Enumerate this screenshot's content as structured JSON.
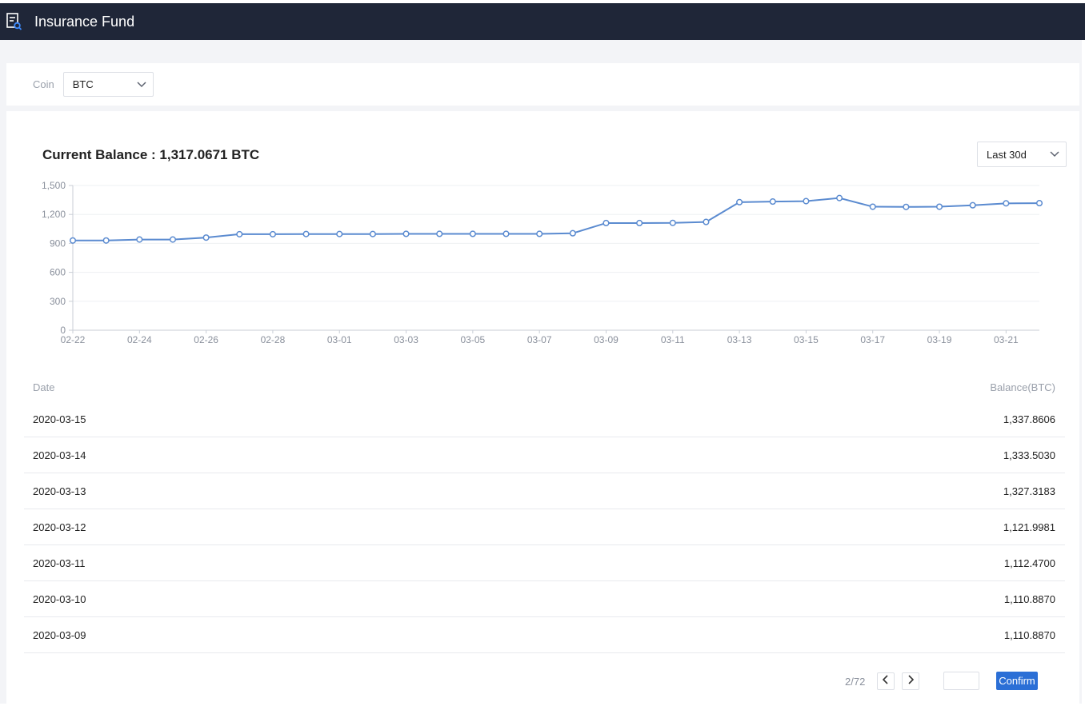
{
  "header": {
    "title": "Insurance Fund",
    "icon": "report-search-icon"
  },
  "filter": {
    "coin_label": "Coin",
    "coin_value": "BTC"
  },
  "summary": {
    "balance_text": "Current Balance : 1,317.0671 BTC",
    "range_value": "Last 30d"
  },
  "chart_data": {
    "type": "line",
    "title": "",
    "xlabel": "",
    "ylabel": "",
    "ylim": [
      0,
      1500
    ],
    "yticks": [
      "0",
      "300",
      "600",
      "900",
      "1,200",
      "1,500"
    ],
    "xticks": [
      "02-22",
      "02-24",
      "02-26",
      "02-28",
      "03-01",
      "03-03",
      "03-05",
      "03-07",
      "03-09",
      "03-11",
      "03-13",
      "03-15",
      "03-17",
      "03-19",
      "03-21"
    ],
    "x": [
      "02-22",
      "02-23",
      "02-24",
      "02-25",
      "02-26",
      "02-27",
      "02-28",
      "02-29",
      "03-01",
      "03-02",
      "03-03",
      "03-04",
      "03-05",
      "03-06",
      "03-07",
      "03-08",
      "03-09",
      "03-10",
      "03-11",
      "03-12",
      "03-13",
      "03-14",
      "03-15",
      "03-16",
      "03-17",
      "03-18",
      "03-19",
      "03-20",
      "03-21",
      "03-22"
    ],
    "series": [
      {
        "values": [
          930,
          930,
          940,
          940,
          960,
          995,
          995,
          997,
          997,
          997,
          999,
          999,
          999,
          999,
          999,
          1005,
          1110.887,
          1110.887,
          1112.47,
          1121.9981,
          1327.3183,
          1333.503,
          1337.8606,
          1370,
          1280,
          1278,
          1280,
          1295,
          1315,
          1317.0671
        ]
      }
    ],
    "grid": true,
    "color": "#5b8bd0"
  },
  "table": {
    "headers": {
      "date": "Date",
      "balance": "Balance(BTC)"
    },
    "rows": [
      {
        "date": "2020-03-15",
        "balance": "1,337.8606"
      },
      {
        "date": "2020-03-14",
        "balance": "1,333.5030"
      },
      {
        "date": "2020-03-13",
        "balance": "1,327.3183"
      },
      {
        "date": "2020-03-12",
        "balance": "1,121.9981"
      },
      {
        "date": "2020-03-11",
        "balance": "1,112.4700"
      },
      {
        "date": "2020-03-10",
        "balance": "1,110.8870"
      },
      {
        "date": "2020-03-09",
        "balance": "1,110.8870"
      }
    ]
  },
  "pagination": {
    "page_info": "2/72",
    "confirm_label": "Confirm",
    "input_value": ""
  }
}
